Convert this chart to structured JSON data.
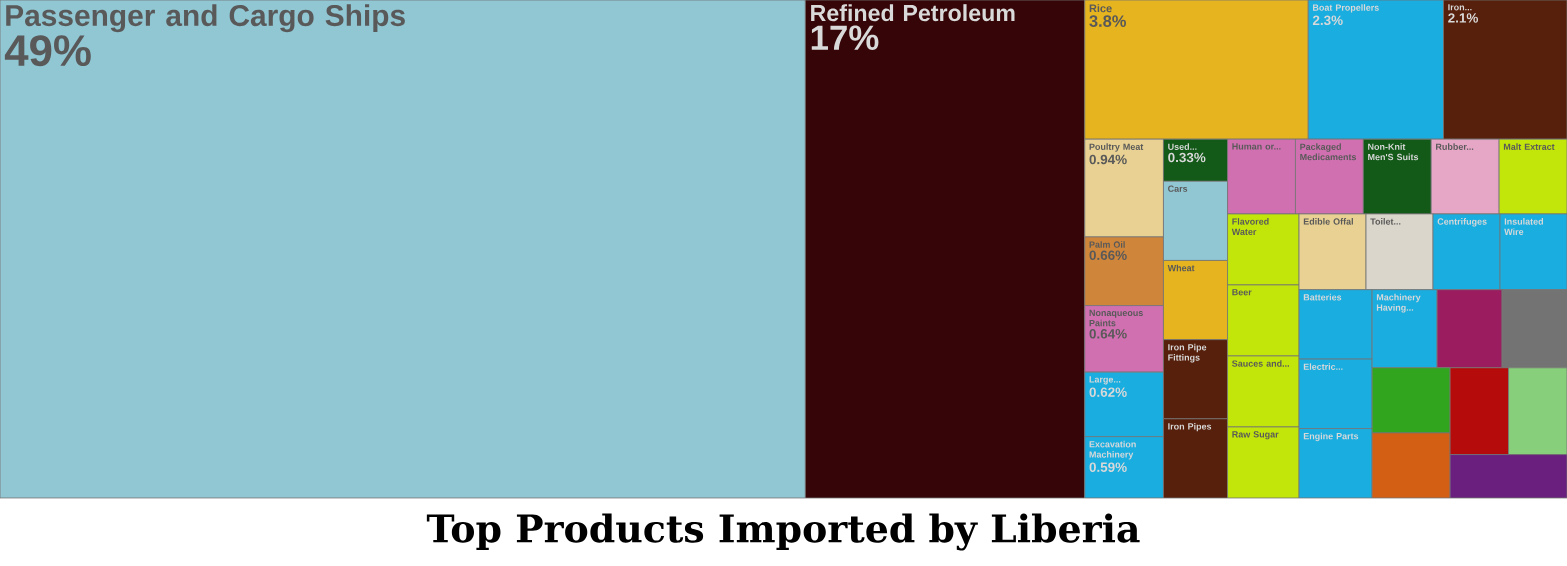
{
  "chart_data": {
    "type": "other",
    "title": "Top Products Imported by Liberia",
    "categories": [
      "Passenger and Cargo Ships",
      "Refined Petroleum",
      "Rice",
      "Boat Propellers",
      "Iron...",
      "Poultry Meat",
      "Palm Oil",
      "Nonaqueous Paints",
      "Large...",
      "Excavation Machinery",
      "Used...",
      "Cars",
      "Wheat",
      "Iron Pipe Fittings",
      "Iron Pipes",
      "Human or...",
      "Packaged Medicaments",
      "Non-Knit Men'S Suits",
      "Rubber...",
      "Malt Extract",
      "Flavored Water",
      "Beer",
      "Sauces and...",
      "Raw Sugar",
      "Edible Offal",
      "Toilet...",
      "Centrifuges",
      "Insulated Wire",
      "Batteries",
      "Electric...",
      "Engine Parts",
      "Machinery Having...",
      null,
      null,
      null,
      null,
      null,
      null,
      null
    ],
    "values": [
      49,
      17,
      3.8,
      2.3,
      2.1,
      0.94,
      0.66,
      0.64,
      0.62,
      0.59,
      0.33,
      null,
      null,
      null,
      null,
      null,
      null,
      null,
      null,
      null,
      null,
      null,
      null,
      null,
      null,
      null,
      null,
      null,
      null,
      null,
      null,
      null,
      null,
      null,
      null,
      null,
      null,
      null,
      null
    ],
    "value_labels": [
      "49%",
      "17%",
      "3.8%",
      "2.3%",
      "2.1%",
      "0.94%",
      "0.66%",
      "0.64%",
      "0.62%",
      "0.59%",
      "0.33%",
      null,
      null,
      null,
      null,
      null,
      null,
      null,
      null,
      null,
      null,
      null,
      null,
      null,
      null,
      null,
      null,
      null,
      null,
      null,
      null,
      null,
      null,
      null,
      null,
      null,
      null,
      null,
      null
    ],
    "colors": [
      "#91c6d3",
      "#350507",
      "#e6b41e",
      "#1aade0",
      "#56200c",
      "#e8d193",
      "#d0863a",
      "#d070b0",
      "#1aade0",
      "#1aade0",
      "#135a19",
      "#91c6d3",
      "#e6b41e",
      "#56200c",
      "#56200c",
      "#d070b0",
      "#d070b0",
      "#135a19",
      "#e6a6c6",
      "#c3e60a",
      "#c3e60a",
      "#c3e60a",
      "#c3e60a",
      "#c3e60a",
      "#e8d193",
      "#dbd6cc",
      "#1aade0",
      "#1aade0",
      "#1aade0",
      "#1aade0",
      "#1aade0",
      "#1aade0",
      "#9b1c5f",
      "#737373",
      "#32a51e",
      "#d25f14",
      "#b50b0b",
      "#88cf7c",
      "#6a1f7f"
    ]
  }
}
